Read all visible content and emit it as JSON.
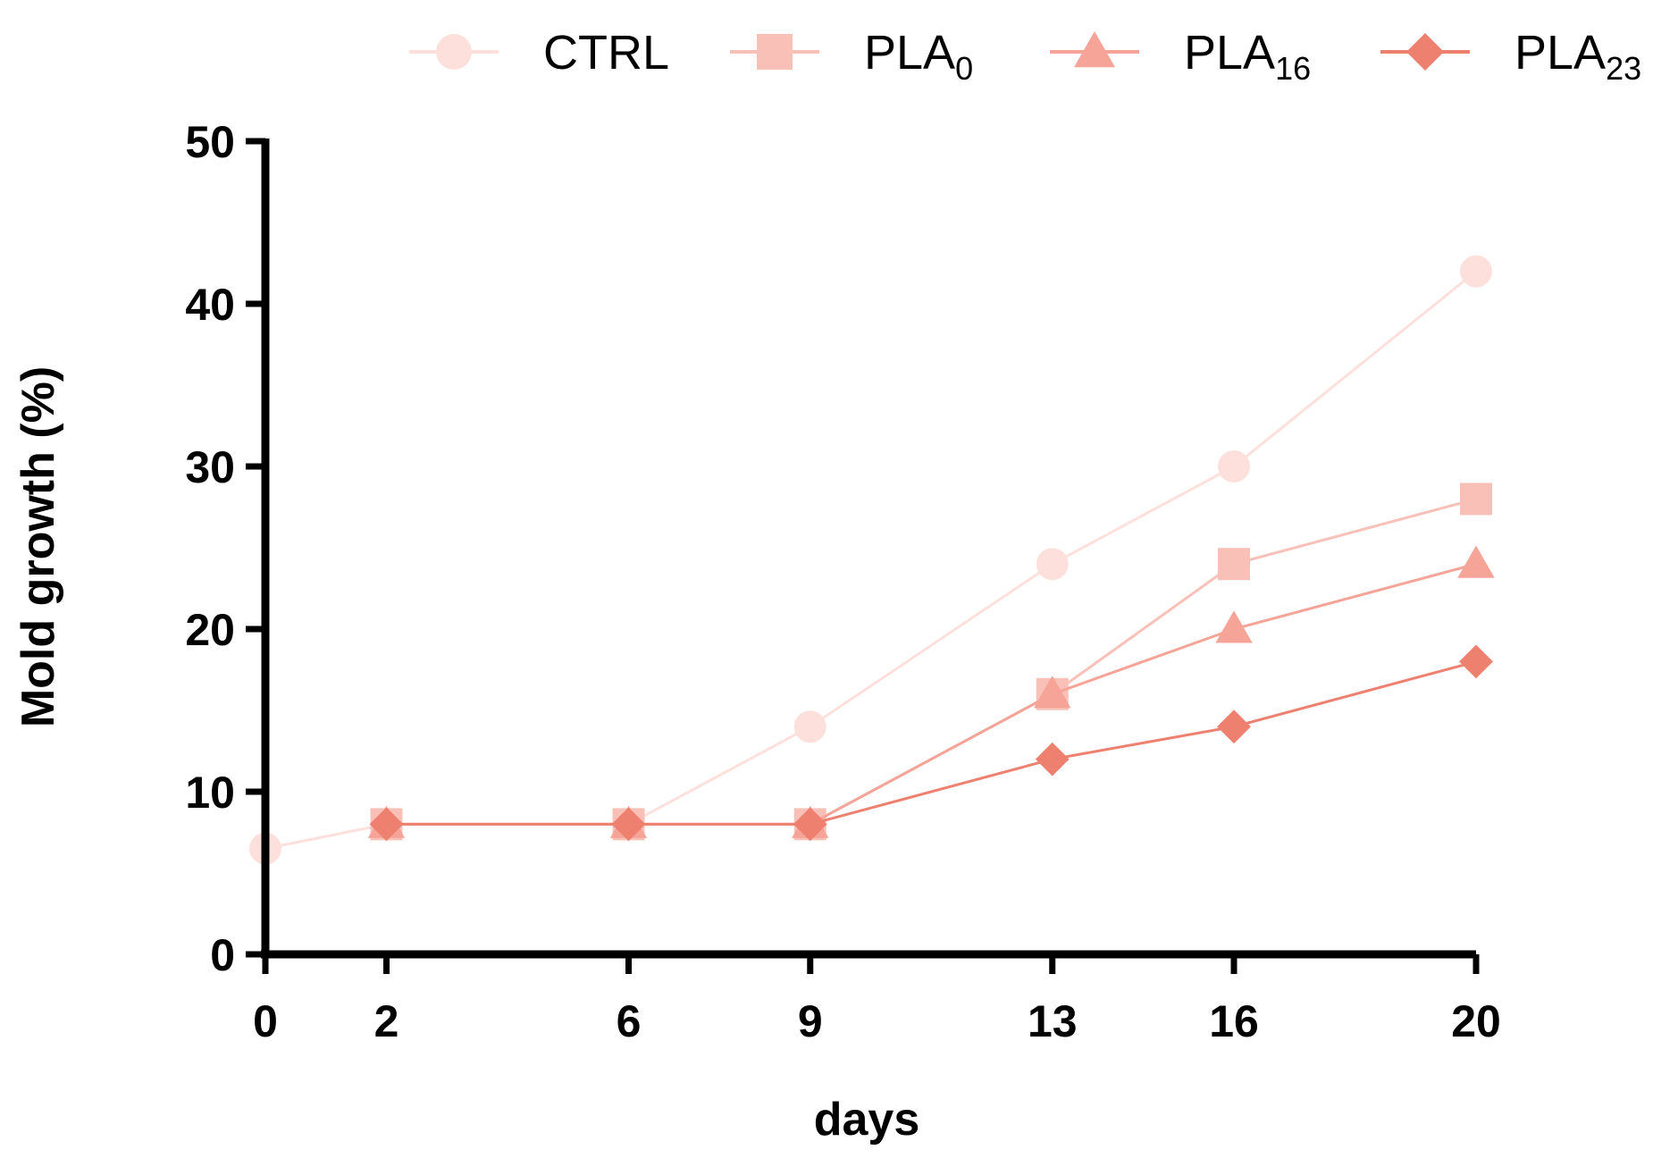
{
  "chart_data": {
    "type": "line",
    "title": "",
    "xlabel": "days",
    "ylabel": "Mold growth (%)",
    "x": [
      0,
      2,
      6,
      9,
      13,
      16,
      20
    ],
    "xticks": [
      "0",
      "2",
      "6",
      "9",
      "13",
      "16",
      "20"
    ],
    "xlim": [
      0,
      20
    ],
    "ylim": [
      0,
      50
    ],
    "yticks": [
      "0",
      "10",
      "20",
      "30",
      "40",
      "50"
    ],
    "grid": false,
    "legend_position": "top",
    "series": [
      {
        "name": "CTRL",
        "name_base": "CTRL",
        "name_sub": "",
        "marker": "circle",
        "color": "#fde0dc",
        "x": [
          0,
          2,
          6,
          9,
          13,
          16,
          20
        ],
        "values": [
          6.5,
          8,
          8,
          14,
          24,
          30,
          42
        ]
      },
      {
        "name": "PLA0",
        "name_base": "PLA",
        "name_sub": "0",
        "marker": "square",
        "color": "#f9c0b8",
        "x": [
          2,
          6,
          9,
          13,
          16,
          20
        ],
        "values": [
          8,
          8,
          8,
          16,
          24,
          28
        ]
      },
      {
        "name": "PLA16",
        "name_base": "PLA",
        "name_sub": "16",
        "marker": "triangle",
        "color": "#f5a497",
        "x": [
          2,
          6,
          9,
          13,
          16,
          20
        ],
        "values": [
          8,
          8,
          8,
          16,
          20,
          24
        ]
      },
      {
        "name": "PLA23",
        "name_base": "PLA",
        "name_sub": "23",
        "marker": "diamond",
        "color": "#ee8070",
        "x": [
          2,
          6,
          9,
          13,
          16,
          20
        ],
        "values": [
          8,
          8,
          8,
          12,
          14,
          18
        ]
      }
    ]
  }
}
